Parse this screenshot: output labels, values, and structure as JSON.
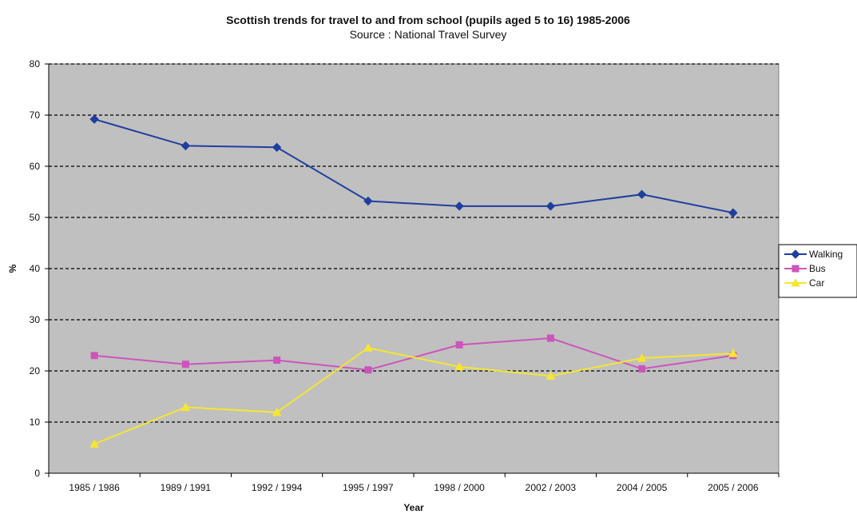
{
  "chart_data": {
    "type": "line",
    "title": "Scottish trends for travel to and from school (pupils aged 5 to 16) 1985-2006",
    "subtitle": "Source : National Travel Survey",
    "xlabel": "Year",
    "ylabel": "%",
    "ylim": [
      0,
      80
    ],
    "yticks": [
      "0",
      "10",
      "20",
      "30",
      "40",
      "50",
      "60",
      "70",
      "80"
    ],
    "categories": [
      "1985 / 1986",
      "1989 / 1991",
      "1992 / 1994",
      "1995 / 1997",
      "1998 / 2000",
      "2002 / 2003",
      "2004 / 2005",
      "2005 / 2006"
    ],
    "grid": "horizontal dashed",
    "legend_position": "right",
    "series": [
      {
        "name": "Walking",
        "color": "#1f3f9f",
        "marker": "diamond",
        "values": [
          69.2,
          64,
          63.7,
          53.2,
          52.2,
          52.2,
          54.5,
          50.9
        ]
      },
      {
        "name": "Bus",
        "color": "#cc55bb",
        "marker": "square",
        "values": [
          23,
          21.3,
          22.1,
          20.2,
          25.1,
          26.4,
          20.4,
          23
        ]
      },
      {
        "name": "Car",
        "color": "#f5e632",
        "marker": "triangle",
        "values": [
          5.7,
          12.9,
          11.9,
          24.5,
          20.8,
          19,
          22.5,
          23.4
        ]
      }
    ]
  },
  "colors": {
    "plot_background": "#c0c0c0",
    "grid": "#000000"
  }
}
